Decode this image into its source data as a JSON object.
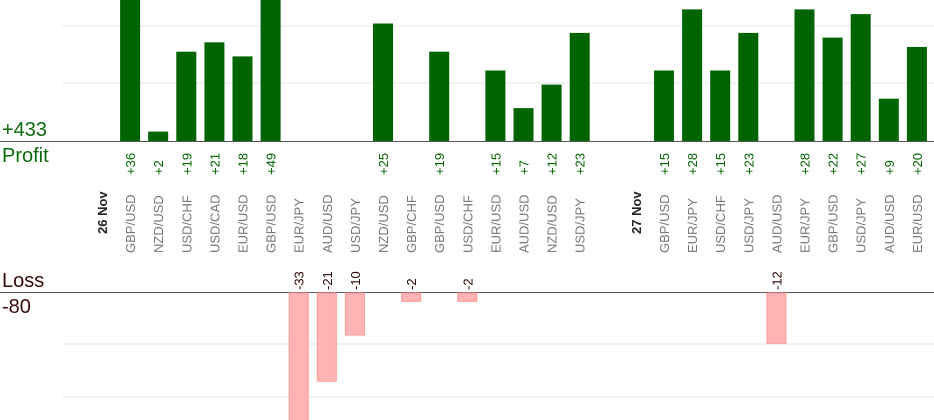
{
  "summary": {
    "profit_total": "+433",
    "profit_label": "Profit",
    "loss_label": "Loss",
    "loss_total": "-80"
  },
  "colors": {
    "profit_bar": "#006400",
    "profit_text": "#006400",
    "loss_bar": "#ffb3b3",
    "loss_bar_edge": "#ff9a9a",
    "loss_text": "#2a0000",
    "pair_text": "#777777",
    "date_text": "#222222",
    "grid": "#e6e6e6",
    "axis": "#555555"
  },
  "chart_data": {
    "type": "bar",
    "profit_ylim": [
      0,
      30
    ],
    "loss_ylim": [
      0,
      25
    ],
    "columns": [
      {
        "kind": "date",
        "label": "26 Nov"
      },
      {
        "kind": "trade",
        "pair": "GBP/USD",
        "value": 36,
        "label": "+36"
      },
      {
        "kind": "trade",
        "pair": "NZD/USD",
        "value": 2,
        "label": "+2"
      },
      {
        "kind": "trade",
        "pair": "USD/CHF",
        "value": 19,
        "label": "+19"
      },
      {
        "kind": "trade",
        "pair": "USD/CAD",
        "value": 21,
        "label": "+21"
      },
      {
        "kind": "trade",
        "pair": "EUR/USD",
        "value": 18,
        "label": "+18"
      },
      {
        "kind": "trade",
        "pair": "GBP/USD",
        "value": 49,
        "label": "+49"
      },
      {
        "kind": "trade",
        "pair": "EUR/JPY",
        "value": -33,
        "label": "-33"
      },
      {
        "kind": "trade",
        "pair": "AUD/USD",
        "value": -21,
        "label": "-21"
      },
      {
        "kind": "trade",
        "pair": "USD/JPY",
        "value": -10,
        "label": "-10"
      },
      {
        "kind": "trade",
        "pair": "NZD/USD",
        "value": 25,
        "label": "+25"
      },
      {
        "kind": "trade",
        "pair": "GBP/CHF",
        "value": -2,
        "label": "-2"
      },
      {
        "kind": "trade",
        "pair": "GBP/USD",
        "value": 19,
        "label": "+19"
      },
      {
        "kind": "trade",
        "pair": "USD/CHF",
        "value": -2,
        "label": "-2"
      },
      {
        "kind": "trade",
        "pair": "EUR/USD",
        "value": 15,
        "label": "+15"
      },
      {
        "kind": "trade",
        "pair": "AUD/USD",
        "value": 7,
        "label": "+7"
      },
      {
        "kind": "trade",
        "pair": "NZD/USD",
        "value": 12,
        "label": "+12"
      },
      {
        "kind": "trade",
        "pair": "USD/JPY",
        "value": 23,
        "label": "+23"
      },
      {
        "kind": "gap"
      },
      {
        "kind": "date",
        "label": "27 Nov"
      },
      {
        "kind": "trade",
        "pair": "GBP/USD",
        "value": 15,
        "label": "+15"
      },
      {
        "kind": "trade",
        "pair": "EUR/JPY",
        "value": 28,
        "label": "+28"
      },
      {
        "kind": "trade",
        "pair": "USD/CHF",
        "value": 15,
        "label": "+15"
      },
      {
        "kind": "trade",
        "pair": "USD/JPY",
        "value": 23,
        "label": "+23"
      },
      {
        "kind": "trade",
        "pair": "AUD/USD",
        "value": -12,
        "label": "-12"
      },
      {
        "kind": "trade",
        "pair": "EUR/JPY",
        "value": 28,
        "label": "+28"
      },
      {
        "kind": "trade",
        "pair": "GBP/USD",
        "value": 22,
        "label": "+22"
      },
      {
        "kind": "trade",
        "pair": "USD/JPY",
        "value": 27,
        "label": "+27"
      },
      {
        "kind": "trade",
        "pair": "AUD/USD",
        "value": 9,
        "label": "+9"
      },
      {
        "kind": "trade",
        "pair": "EUR/USD",
        "value": 20,
        "label": "+20"
      }
    ]
  }
}
